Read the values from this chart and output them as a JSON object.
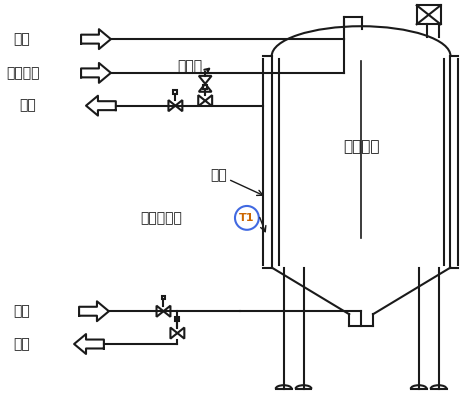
{
  "bg_color": "#ffffff",
  "line_color": "#1a1a1a",
  "text_color": "#1a1a1a",
  "t1_circle_color": "#4169e1",
  "t1_text_color": "#cc6600",
  "labels": {
    "steam": "蒸汽",
    "compressed_air": "压缩空气",
    "coolant_top": "冷媒",
    "jacket": "夹套",
    "temp_sensor": "温度传感器",
    "tank": "罐类设备",
    "safety_valve": "安全阀",
    "coolant_bottom": "冷媒",
    "drain": "排污"
  },
  "figsize": [
    4.66,
    4.03
  ],
  "dpi": 100
}
